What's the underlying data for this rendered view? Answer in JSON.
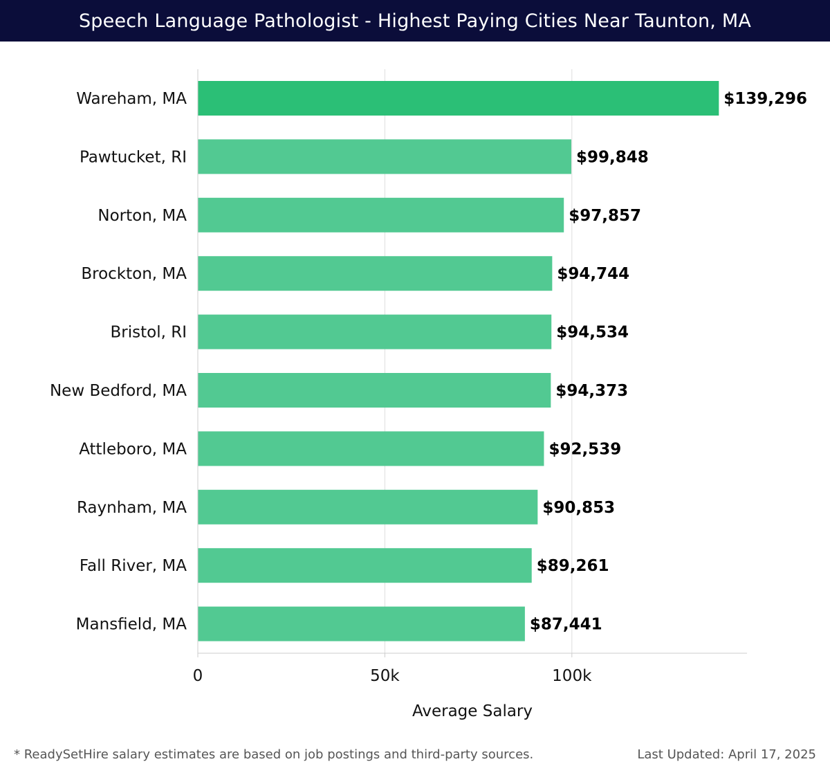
{
  "header": {
    "title": "Speech Language Pathologist - Highest Paying Cities Near Taunton, MA"
  },
  "footer": {
    "note": "* ReadySetHire salary estimates are based on job postings and third-party sources.",
    "updated": "Last Updated: April 17, 2025"
  },
  "colors": {
    "header_bg": "#0b0d3a",
    "bar_top": "#2bbf76",
    "bar": "#52c992",
    "grid": "#dddddd"
  },
  "chart_data": {
    "type": "bar",
    "orientation": "horizontal",
    "categories": [
      "Wareham, MA",
      "Pawtucket, RI",
      "Norton, MA",
      "Brockton, MA",
      "Bristol, RI",
      "New Bedford, MA",
      "Attleboro, MA",
      "Raynham, MA",
      "Fall River, MA",
      "Mansfield, MA"
    ],
    "values": [
      139296,
      99848,
      97857,
      94744,
      94534,
      94373,
      92539,
      90853,
      89261,
      87441
    ],
    "value_labels": [
      "$139,296",
      "$99,848",
      "$97,857",
      "$94,744",
      "$94,534",
      "$94,373",
      "$92,539",
      "$90,853",
      "$89,261",
      "$87,441"
    ],
    "xlabel": "Average Salary",
    "xlim": [
      0,
      146820
    ],
    "x_ticks": [
      0,
      50000,
      100000
    ],
    "x_tick_labels": [
      "0",
      "50k",
      "100k"
    ],
    "grid": true
  }
}
